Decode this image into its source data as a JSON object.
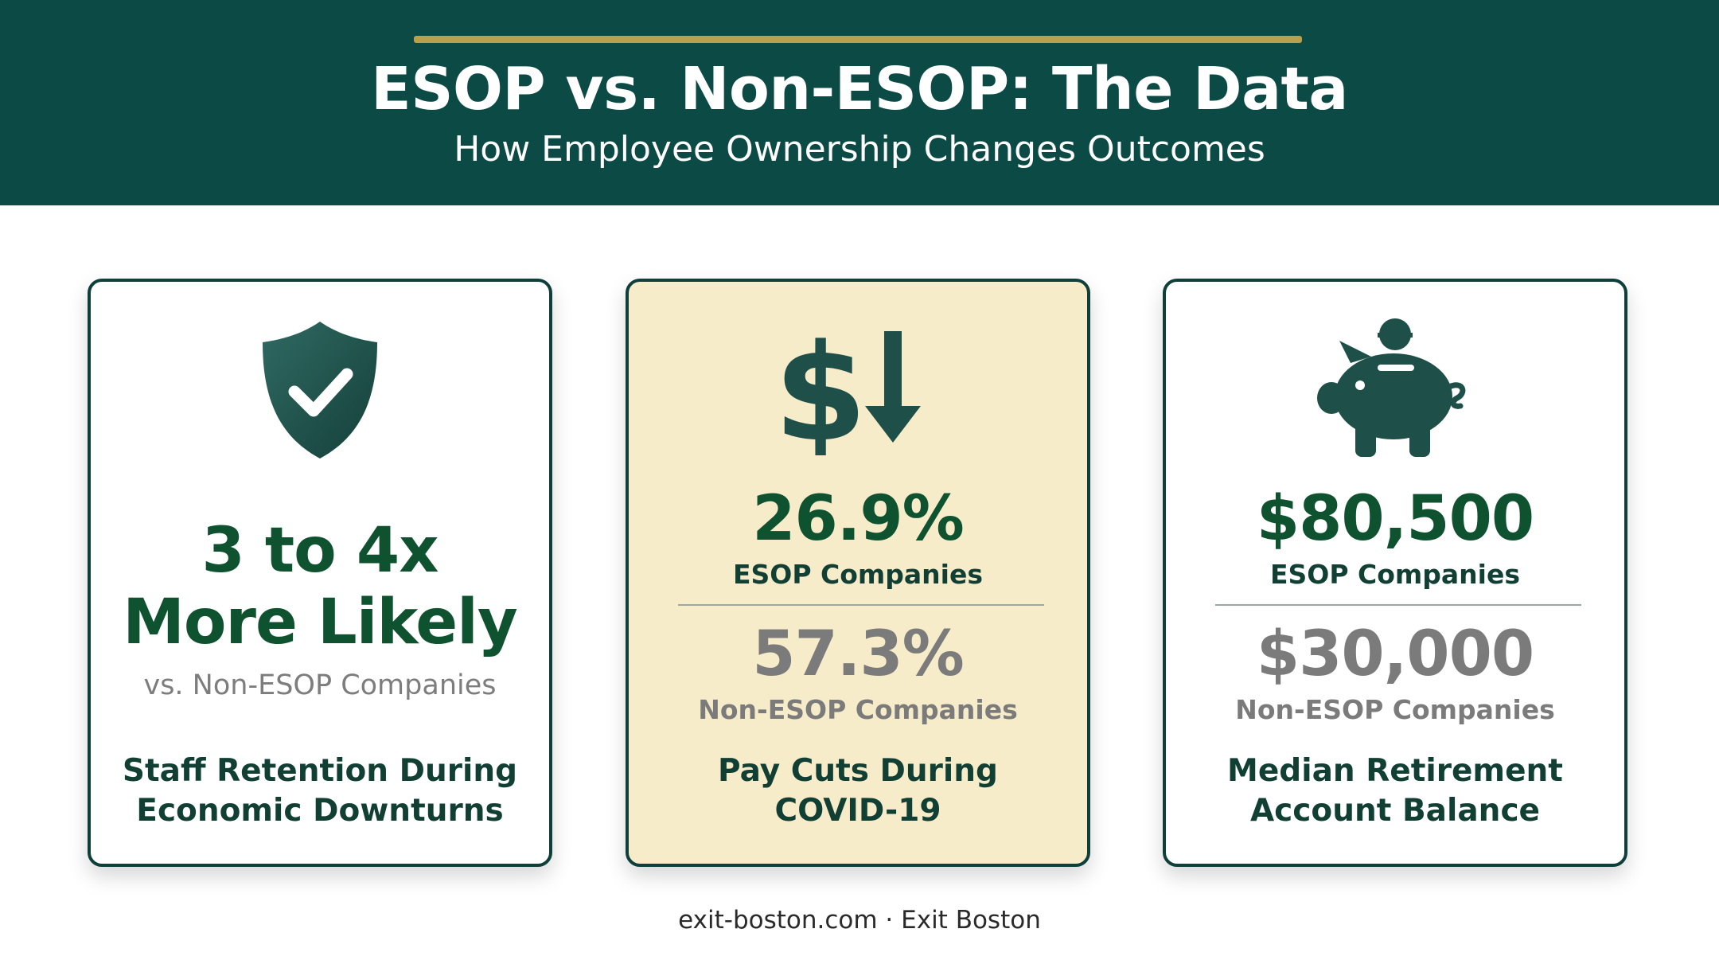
{
  "header": {
    "title": "ESOP vs. Non-ESOP: The Data",
    "subtitle": "How Employee Ownership Changes Outcomes"
  },
  "cards": [
    {
      "icon": "shield-check-icon",
      "headline_line1": "3 to 4x",
      "headline_line2": "More Likely",
      "comparison": "vs. Non-ESOP Companies",
      "caption_line1": "Staff Retention During",
      "caption_line2": "Economic Downturns"
    },
    {
      "icon": "dollar-down-arrow-icon",
      "esop_value": "26.9%",
      "esop_label": "ESOP Companies",
      "non_esop_value": "57.3%",
      "non_esop_label": "Non-ESOP Companies",
      "caption_line1": "Pay Cuts During",
      "caption_line2": "COVID-19"
    },
    {
      "icon": "piggy-bank-icon",
      "esop_value": "$80,500",
      "esop_label": "ESOP Companies",
      "non_esop_value": "$30,000",
      "non_esop_label": "Non-ESOP Companies",
      "caption_line1": "Median Retirement",
      "caption_line2": "Account Balance"
    }
  ],
  "footer": {
    "text": "exit-boston.com · Exit Boston"
  },
  "colors": {
    "header_bg": "#0c4a45",
    "accent_gold": "#b8a04c",
    "highlight_card_bg": "#f6ecc9",
    "primary_green": "#0f5230",
    "icon_teal": "#1f4f49"
  }
}
